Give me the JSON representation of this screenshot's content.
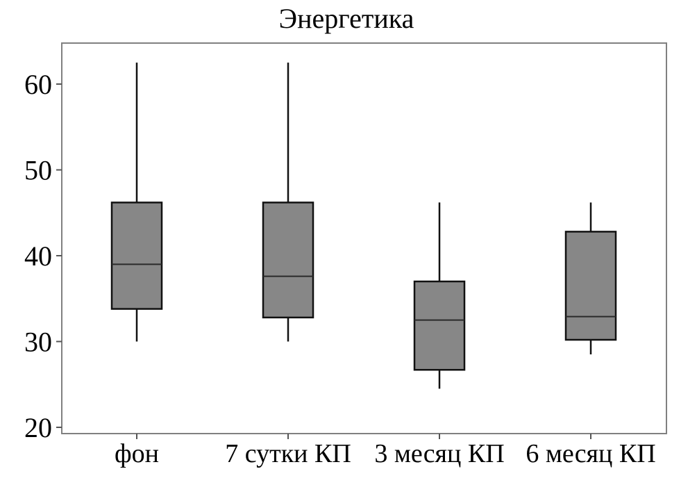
{
  "chart_data": {
    "type": "boxplot",
    "title": "Энергетика",
    "xlabel": "",
    "ylabel": "",
    "ylim": [
      19.5,
      65
    ],
    "yticks": [
      20,
      30,
      40,
      50,
      60
    ],
    "grid": false,
    "categories": [
      "фон",
      "7 сутки КП",
      "3 месяц КП",
      "6 месяц КП"
    ],
    "boxes": [
      {
        "min": 30,
        "q1": 33.8,
        "median": 39.0,
        "q3": 46.2,
        "max": 62.5
      },
      {
        "min": 30,
        "q1": 32.8,
        "median": 37.6,
        "q3": 46.2,
        "max": 62.5
      },
      {
        "min": 24.5,
        "q1": 26.7,
        "median": 32.5,
        "q3": 37.0,
        "max": 46.2
      },
      {
        "min": 28.5,
        "q1": 30.2,
        "median": 32.9,
        "q3": 42.8,
        "max": 46.2
      }
    ],
    "colors": {
      "box_fill": "#878787",
      "box_stroke": "#111111",
      "frame": "#808080"
    }
  }
}
